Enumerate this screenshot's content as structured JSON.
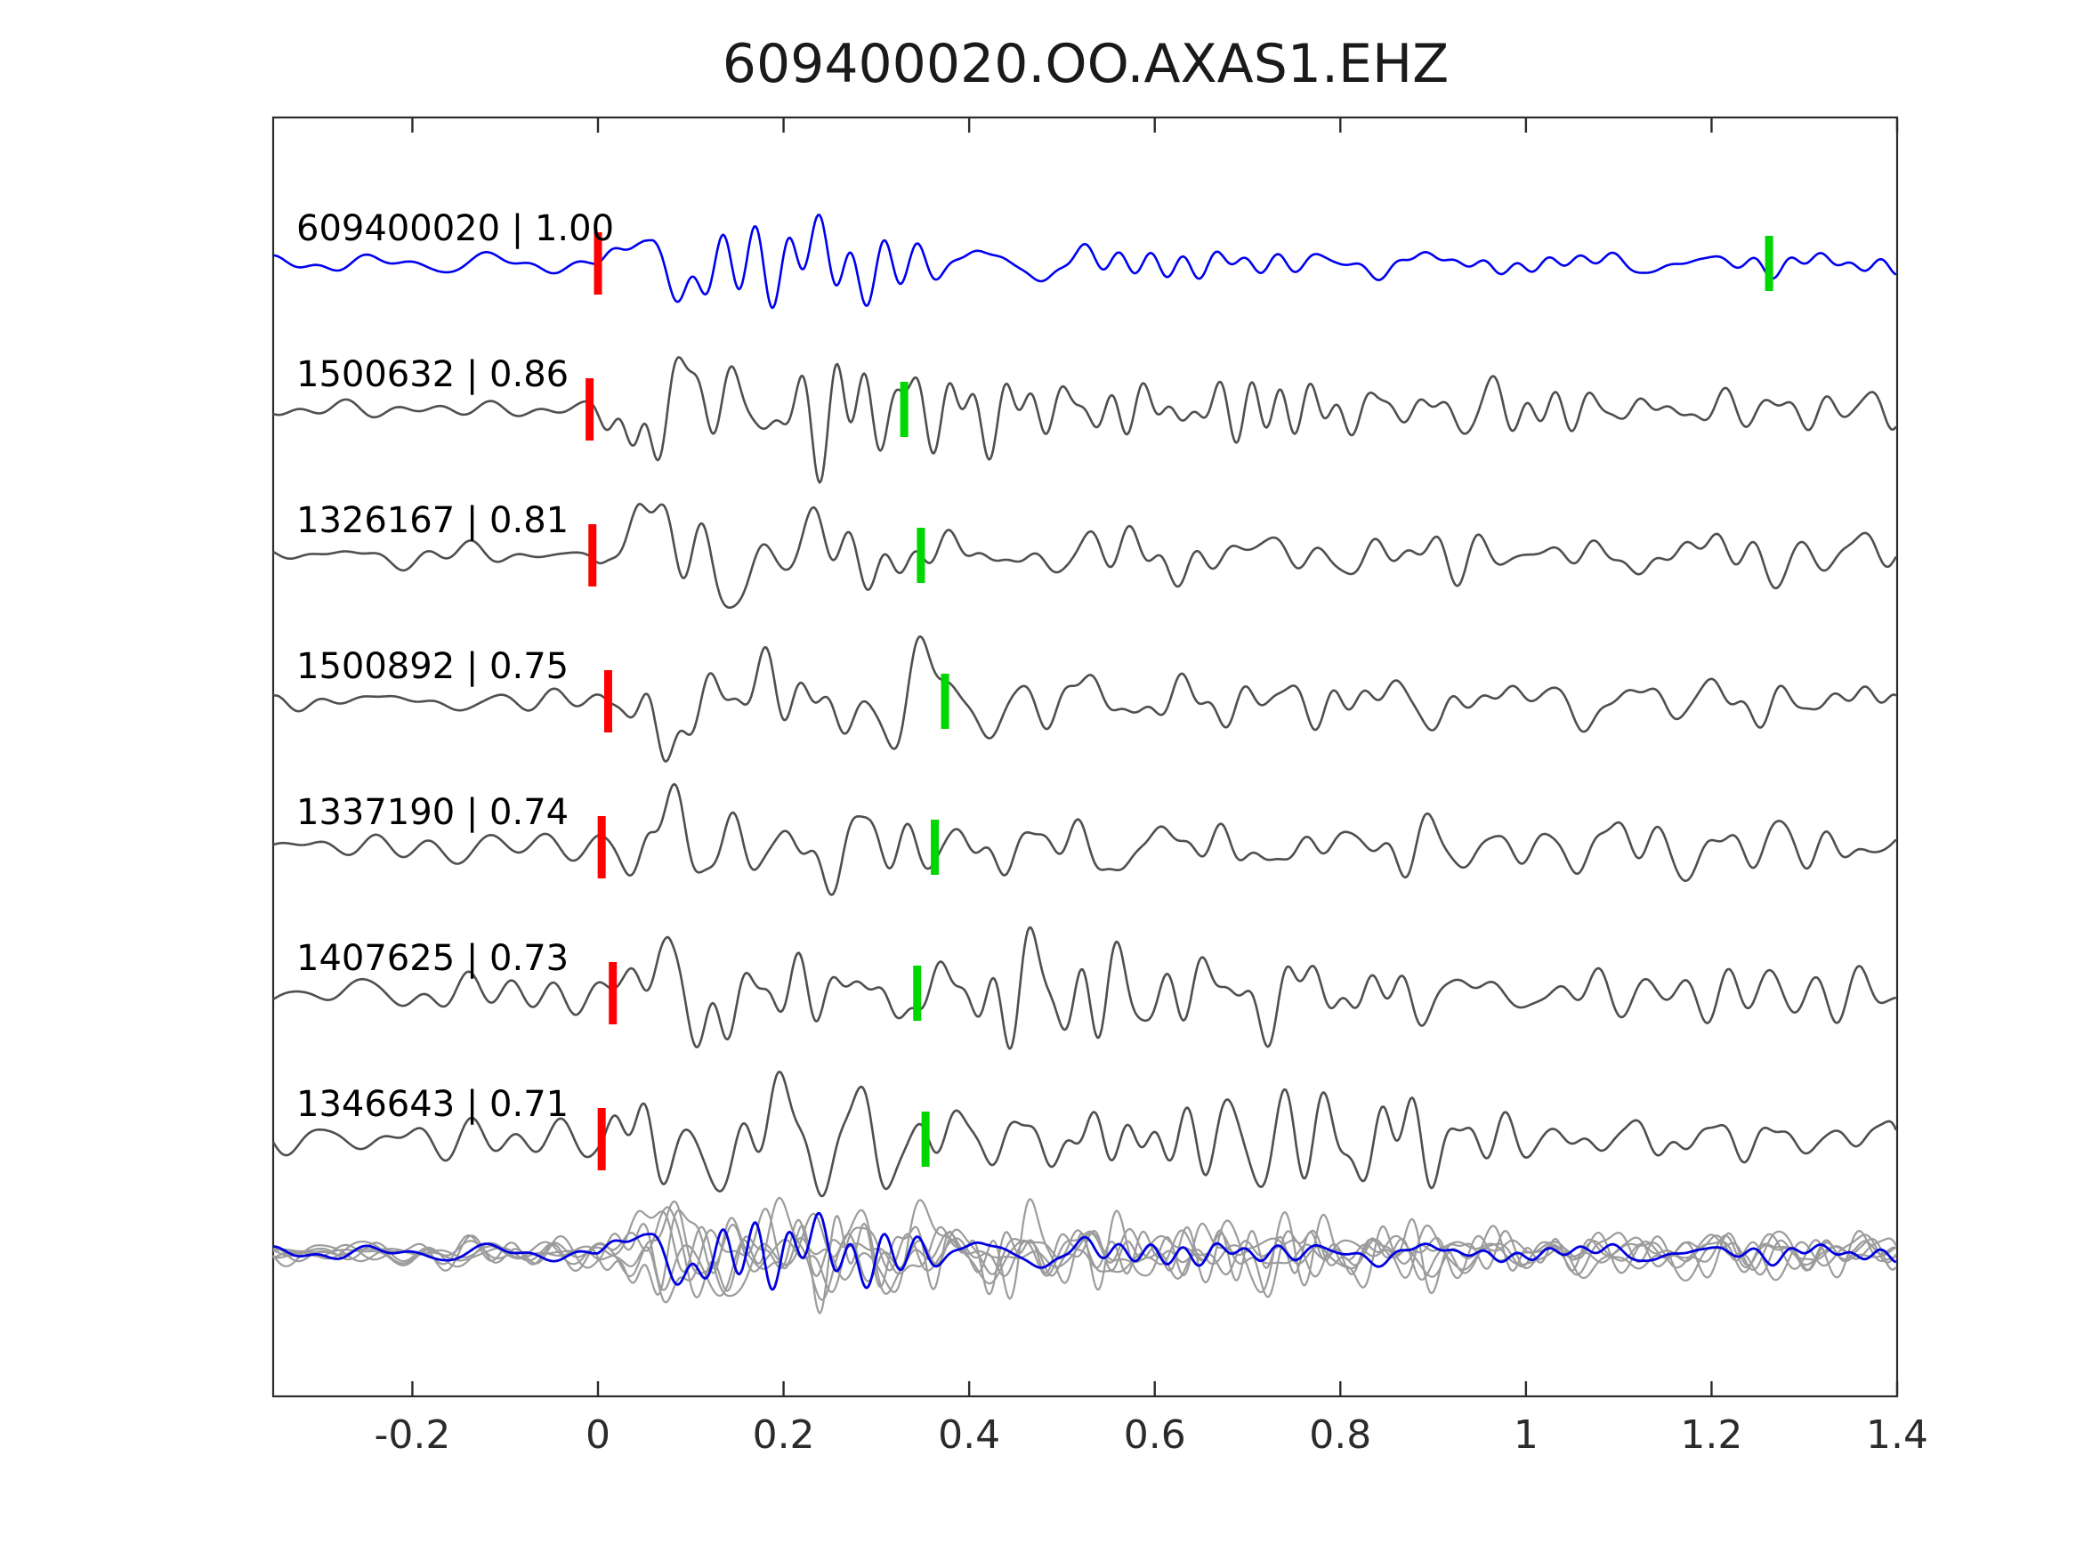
{
  "title": "609400020.OO.AXAS1.EHZ",
  "colors": {
    "background": "#ffffff",
    "axis": "#2b2b2b",
    "reference_blue": "#0000f0",
    "template_gray": "#4f4f4f",
    "overlay_gray": "#9c9c9c",
    "overlay_blue": "#0000e0",
    "pick_red": "#ff0000",
    "pick_green": "#00d600"
  },
  "chart_data": {
    "type": "line",
    "title": "609400020.OO.AXAS1.EHZ",
    "xlabel": "",
    "ylabel": "",
    "xlim": [
      -0.35,
      1.4
    ],
    "x_ticks": [
      -0.2,
      0,
      0.2,
      0.4,
      0.6,
      0.8,
      1,
      1.2,
      1.4
    ],
    "x_tick_labels": [
      "-0.2",
      "0",
      "0.2",
      "0.4",
      "0.6",
      "0.8",
      "1",
      "1.2",
      "1.4"
    ],
    "grid": false,
    "legend": "none",
    "description": "Stacked seismic waveform comparison: blue reference trace and gray matched template traces, each labeled 'event_id | similarity'. Red vertical ticks mark the alignment pick near t=0; green vertical ticks mark a secondary pick. Bottom row overlays all traces (gray) with the reference in blue.",
    "traces": [
      {
        "event_id": "609400020",
        "similarity": 1.0,
        "label": "609400020 | 1.00",
        "role": "reference",
        "red_pick_t": 0.0,
        "green_pick_t": 1.262,
        "waveform": {
          "seed": 11,
          "amp": 76,
          "coda": 0.17,
          "tau": 0.28,
          "noise": 6
        }
      },
      {
        "event_id": "1500632",
        "similarity": 0.86,
        "label": "1500632 | 0.86",
        "role": "template",
        "red_pick_t": -0.009,
        "green_pick_t": 0.33,
        "waveform": {
          "seed": 22,
          "amp": 78,
          "coda": 0.34,
          "tau": 0.4,
          "noise": 7
        }
      },
      {
        "event_id": "1326167",
        "similarity": 0.81,
        "label": "1326167 | 0.81",
        "role": "template",
        "red_pick_t": -0.006,
        "green_pick_t": 0.348,
        "waveform": {
          "seed": 33,
          "amp": 74,
          "coda": 0.36,
          "tau": 0.38,
          "noise": 6
        }
      },
      {
        "event_id": "1500892",
        "similarity": 0.75,
        "label": "1500892 | 0.75",
        "role": "template",
        "red_pick_t": 0.011,
        "green_pick_t": 0.374,
        "waveform": {
          "seed": 44,
          "amp": 72,
          "coda": 0.35,
          "tau": 0.42,
          "noise": 7
        }
      },
      {
        "event_id": "1337190",
        "similarity": 0.74,
        "label": "1337190 | 0.74",
        "role": "template",
        "red_pick_t": 0.004,
        "green_pick_t": 0.363,
        "waveform": {
          "seed": 55,
          "amp": 76,
          "coda": 0.38,
          "tau": 0.4,
          "noise": 9
        }
      },
      {
        "event_id": "1407625",
        "similarity": 0.73,
        "label": "1407625 | 0.73",
        "role": "template",
        "red_pick_t": 0.016,
        "green_pick_t": 0.344,
        "waveform": {
          "seed": 66,
          "amp": 72,
          "coda": 0.4,
          "tau": 0.45,
          "noise": 12
        }
      },
      {
        "event_id": "1346643",
        "similarity": 0.71,
        "label": "1346643 | 0.71",
        "role": "template",
        "red_pick_t": 0.004,
        "green_pick_t": 0.353,
        "waveform": {
          "seed": 77,
          "amp": 84,
          "coda": 0.55,
          "tau": 0.5,
          "noise": 13
        }
      }
    ],
    "overlay_row": {
      "content": "all traces overlaid",
      "template_color": "gray",
      "reference_color": "blue"
    }
  }
}
